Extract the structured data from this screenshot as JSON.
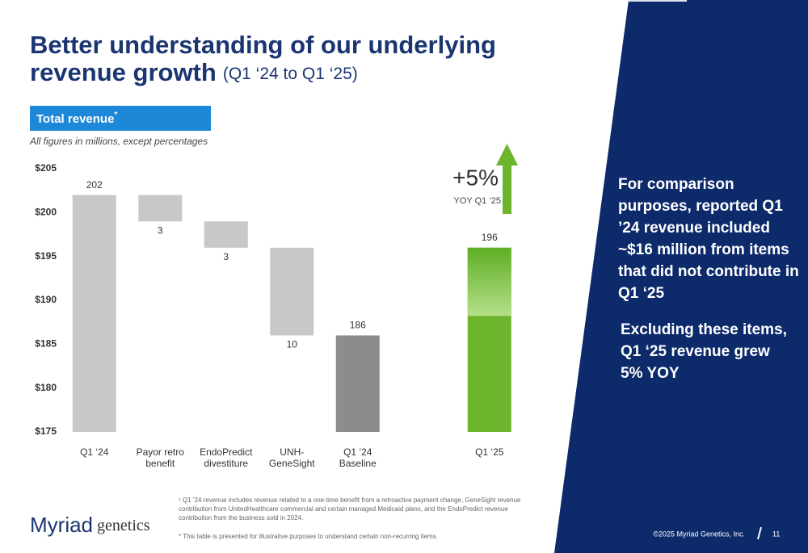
{
  "header": {
    "title_line1": "Better understanding of our underlying",
    "title_line2": "revenue growth",
    "title_suffix": "(Q1 ‘24 to Q1 ‘25)"
  },
  "chart_data": {
    "type": "waterfall",
    "title": "Total revenue",
    "title_marker": "*",
    "subtitle": "All figures in millions, except percentages",
    "categories": [
      "Q1 ‘24",
      "Payor retro\nbenefit",
      "EndoPredict\ndivestiture",
      "UNH-\nGeneSight",
      "Q1 ’24\nBaseline",
      null,
      "Q1 ‘25"
    ],
    "values": [
      202,
      3,
      3,
      10,
      186,
      null,
      196
    ],
    "measures": [
      "total",
      "decrease",
      "decrease",
      "decrease",
      "total",
      null,
      "total"
    ],
    "colors": [
      "#c8c8c8",
      "#c8c8c8",
      "#c8c8c8",
      "#c8c8c8",
      "#8c8c8c",
      null,
      "#6cb52d"
    ],
    "ylim": [
      175,
      205
    ],
    "yticks": [
      {
        "value": 175,
        "label": "$175"
      },
      {
        "value": 180,
        "label": "$180"
      },
      {
        "value": 185,
        "label": "$185"
      },
      {
        "value": 190,
        "label": "$190"
      },
      {
        "value": 195,
        "label": "$195"
      },
      {
        "value": 200,
        "label": "$200"
      },
      {
        "value": 205,
        "label": "$205"
      }
    ],
    "grid": false,
    "annotation": {
      "text": "+5%",
      "subtext": "YOY Q1 ‘25"
    }
  },
  "panel": {
    "para1": [
      "For comparison",
      "purposes, reported Q1",
      "’24 revenue included",
      "~$16 million from items",
      "that did not contribute in",
      "Q1 ‘25"
    ],
    "para2": [
      "Excluding these items,"
    ],
    "para2_bold": [
      "Q1 ‘25 revenue grew",
      "5% YOY"
    ]
  },
  "footnotes": [
    "¹ Q1 ’24 revenue includes revenue related to a one-time benefit from a retroactive payment change, GeneSight revenue",
    "contribution from UnitedHealthcare commercial and certain managed Medicaid plans, and the EndoPredict revenue",
    "contribution from the business sold in 2024.",
    "* This table is presented for illustrative purposes to understand certain non-recurring items."
  ],
  "footer": {
    "logo_main": "Myriad",
    "logo_sub": "genetics",
    "copyright": "©2025 Myriad Genetics, Inc.",
    "page": "11"
  }
}
